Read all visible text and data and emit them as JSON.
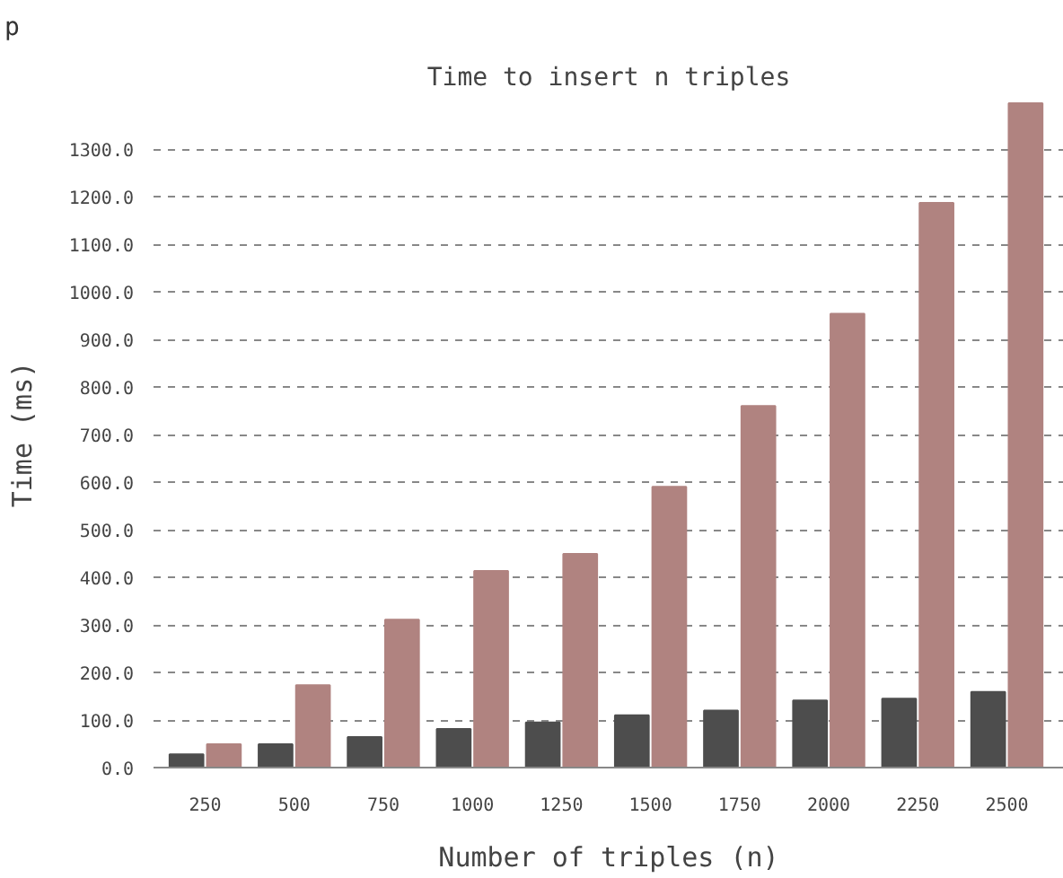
{
  "chart_data": {
    "type": "bar",
    "title": "Time to insert n triples",
    "xlabel": "Number of triples (n)",
    "ylabel": "Time (ms)",
    "categories": [
      "250",
      "500",
      "750",
      "1000",
      "1250",
      "1500",
      "1750",
      "2000",
      "2250",
      "2500"
    ],
    "series": [
      {
        "color": "#4d4d4d",
        "values": [
          28,
          49,
          64,
          81,
          95,
          110,
          120,
          141,
          145,
          159
        ]
      },
      {
        "color": "#b08380",
        "values": [
          49,
          173,
          311,
          413,
          449,
          590,
          760,
          954,
          1187,
          1396
        ]
      }
    ],
    "ylim": [
      0,
      1400
    ],
    "yticks": [
      {
        "value": 0,
        "label": "0.0"
      },
      {
        "value": 100,
        "label": "100.0"
      },
      {
        "value": 200,
        "label": "200.0"
      },
      {
        "value": 300,
        "label": "300.0"
      },
      {
        "value": 400,
        "label": "400.0"
      },
      {
        "value": 500,
        "label": "500.0"
      },
      {
        "value": 600,
        "label": "600.0"
      },
      {
        "value": 700,
        "label": "700.0"
      },
      {
        "value": 800,
        "label": "800.0"
      },
      {
        "value": 900,
        "label": "900.0"
      },
      {
        "value": 1000,
        "label": "1000.0"
      },
      {
        "value": 1100,
        "label": "1100.0"
      },
      {
        "value": 1200,
        "label": "1200.0"
      },
      {
        "value": 1300,
        "label": "1300.0"
      }
    ],
    "grid": "y",
    "annotations": [
      "p"
    ]
  }
}
